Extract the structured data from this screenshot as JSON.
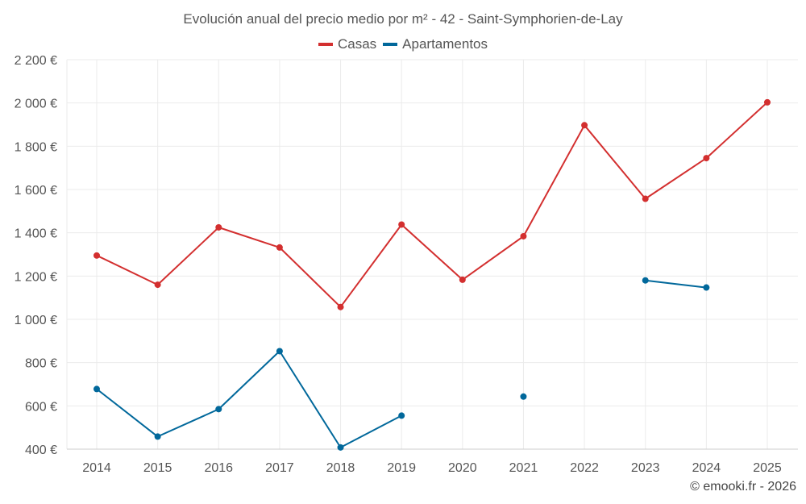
{
  "colors": {
    "casas": "#d32f2f",
    "apartamentos": "#01689b",
    "grid": "#ebebeb",
    "axis": "#cccccc"
  },
  "credit": "© emooki.fr - 2026",
  "chart_data": {
    "type": "line",
    "title": "Evolución anual del precio medio por m² - 42 - Saint-Symphorien-de-Lay",
    "xlabel": "",
    "ylabel": "",
    "legend_position": "top-center",
    "grid": true,
    "categories": [
      "2014",
      "2015",
      "2016",
      "2017",
      "2018",
      "2019",
      "2020",
      "2021",
      "2022",
      "2023",
      "2024",
      "2025"
    ],
    "ylim": [
      400,
      2200
    ],
    "yticks": [
      400,
      600,
      800,
      1000,
      1200,
      1400,
      1600,
      1800,
      2000,
      2200
    ],
    "ytick_labels": [
      "400 €",
      "600 €",
      "800 €",
      "1 000 €",
      "1 200 €",
      "1 400 €",
      "1 600 €",
      "1 800 €",
      "2 000 €",
      "2 200 €"
    ],
    "series": [
      {
        "name": "Casas",
        "color": "#d32f2f",
        "values": [
          1295,
          1160,
          1425,
          1332,
          1057,
          1438,
          1183,
          1384,
          1897,
          1557,
          1745,
          2003
        ]
      },
      {
        "name": "Apartamentos",
        "color": "#01689b",
        "values": [
          678,
          458,
          585,
          853,
          408,
          555,
          null,
          643,
          null,
          1180,
          1147,
          null
        ]
      }
    ]
  }
}
